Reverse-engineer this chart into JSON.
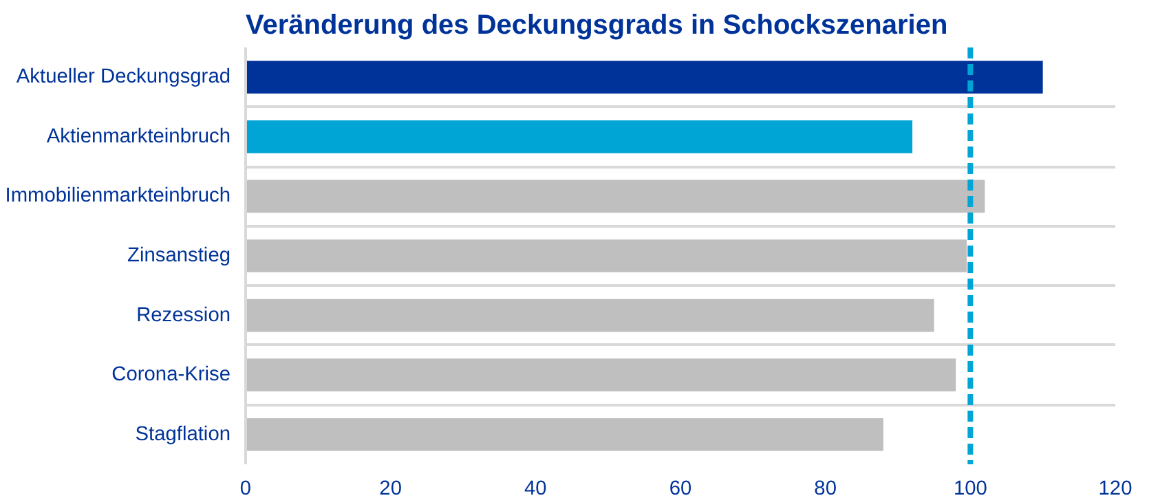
{
  "chart_data": {
    "type": "bar",
    "orientation": "horizontal",
    "title": "Veränderung des Deckungsgrads in Schockszenarien",
    "categories": [
      "Aktueller Deckungsgrad",
      "Aktienmarkteinbruch",
      "Immobilienmarkteinbruch",
      "Zinsanstieg",
      "Rezession",
      "Corona-Krise",
      "Stagflation"
    ],
    "values": [
      110,
      92,
      102,
      99.5,
      95,
      98,
      88
    ],
    "colors": [
      "#003399",
      "#00a5d6",
      "#bfbfbf",
      "#bfbfbf",
      "#bfbfbf",
      "#bfbfbf",
      "#bfbfbf"
    ],
    "xlim": [
      0,
      120
    ],
    "xticks": [
      0,
      20,
      40,
      60,
      80,
      100,
      120
    ],
    "grid": "y",
    "ref_lines": [
      {
        "axis": "x",
        "value": 100,
        "color": "#00a5d6",
        "line_style": "dashed"
      }
    ]
  }
}
